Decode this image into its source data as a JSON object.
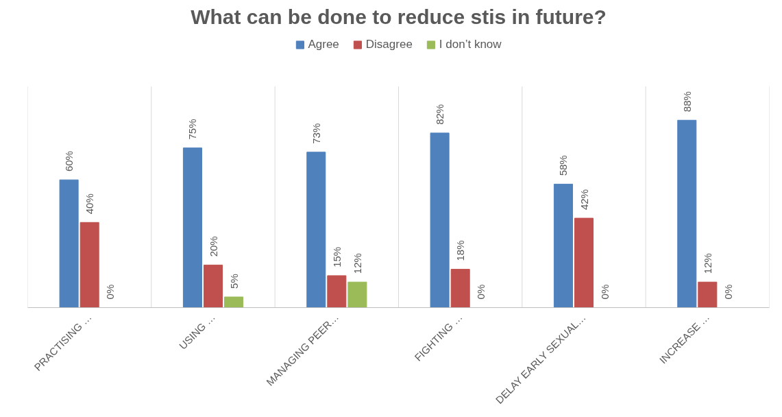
{
  "chart_data": {
    "type": "bar",
    "title": "What can be done to reduce stis in future?",
    "categories": [
      "PRACTISING …",
      "USING …",
      "MANAGING PEER…",
      "FIGHTING …",
      "DELAY EARLY SEXUAL…",
      "INCREASE …"
    ],
    "series": [
      {
        "name": "Agree",
        "color": "#4f81bd",
        "values": [
          60,
          75,
          73,
          82,
          58,
          88
        ],
        "value_labels": [
          "60%",
          "75%",
          "73%",
          "82%",
          "58%",
          "88%"
        ]
      },
      {
        "name": "Disagree",
        "color": "#c0504d",
        "values": [
          40,
          20,
          15,
          18,
          42,
          12
        ],
        "value_labels": [
          "40%",
          "20%",
          "15%",
          "18%",
          "42%",
          "12%"
        ]
      },
      {
        "name": "I don’t know",
        "color": "#9bbb59",
        "values": [
          0,
          5,
          12,
          0,
          0,
          0
        ],
        "value_labels": [
          "0%",
          "5%",
          "12%",
          "0%",
          "0%",
          "0%"
        ]
      }
    ],
    "relative": false,
    "grid": "x",
    "legend": "top"
  }
}
